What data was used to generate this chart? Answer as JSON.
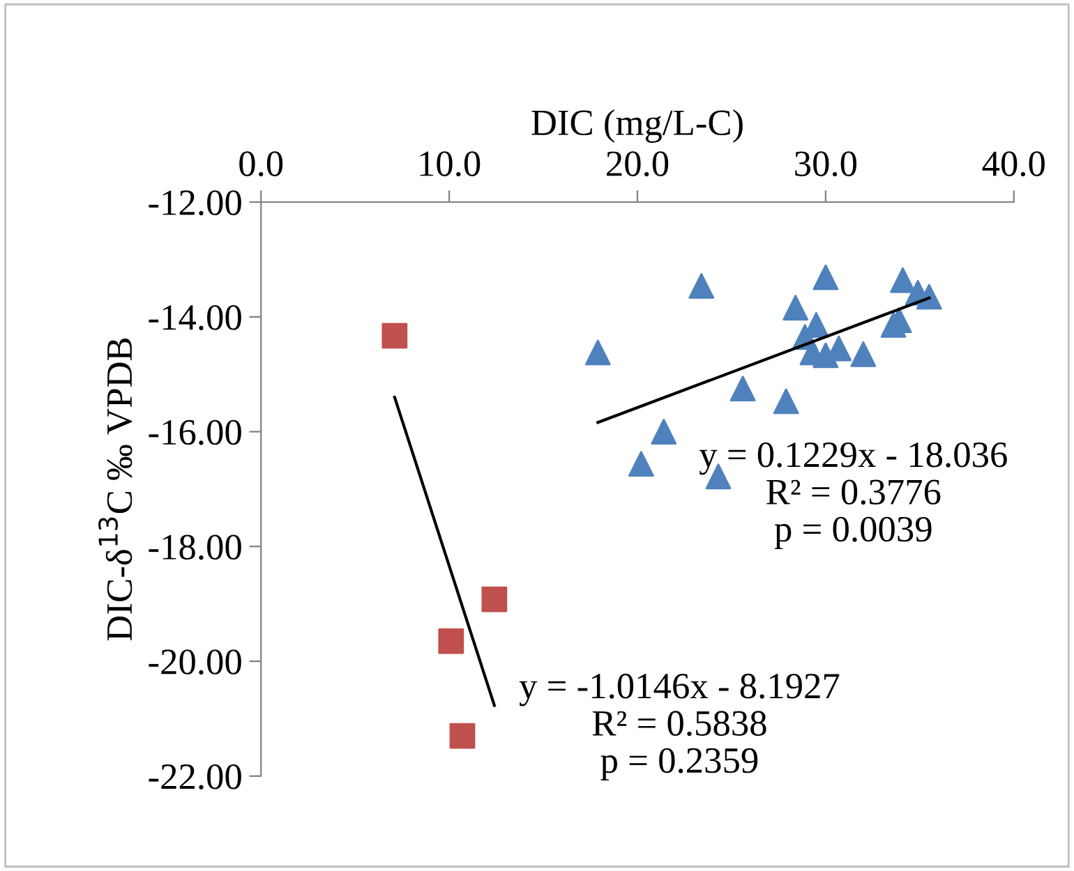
{
  "chart_data": {
    "type": "scatter",
    "xlabel": "DIC (mg/L-C)",
    "ylabel": "DIC-δ$^{13}$C ‰ VPDB",
    "xlim": [
      0,
      40
    ],
    "xticks": [
      {
        "value": 0,
        "label": "0.0"
      },
      {
        "value": 10,
        "label": "10.0"
      },
      {
        "value": 20,
        "label": "20.0"
      },
      {
        "value": 30,
        "label": "30.0"
      },
      {
        "value": 40,
        "label": "40.0"
      }
    ],
    "ylim": [
      -22,
      -12
    ],
    "yticks": [
      {
        "value": -22,
        "label": "-22.00"
      },
      {
        "value": -20,
        "label": "-20.00"
      },
      {
        "value": -18,
        "label": "-18.00"
      },
      {
        "value": -16,
        "label": "-16.00"
      },
      {
        "value": -14,
        "label": "-14.00"
      },
      {
        "value": -12,
        "label": "-12.00"
      }
    ],
    "grid": false,
    "legend": false,
    "series": [
      {
        "marker": "triangle",
        "color": "#4f81bd",
        "x": [
          17.9,
          23.4,
          21.4,
          20.2,
          24.3,
          25.6,
          27.9,
          28.4,
          28.9,
          29.5,
          29.3,
          30.0,
          30.7,
          32.0,
          30.0,
          34.1,
          34.9,
          35.5,
          33.6,
          33.9
        ],
        "values": [
          -14.62,
          -13.46,
          -16.0,
          -16.56,
          -16.78,
          -15.25,
          -15.47,
          -13.84,
          -14.35,
          -14.14,
          -14.62,
          -14.67,
          -14.55,
          -14.65,
          -13.31,
          -13.36,
          -13.58,
          -13.65,
          -14.14,
          -14.06
        ]
      },
      {
        "marker": "square",
        "color": "#c0504d",
        "x": [
          7.1,
          12.4,
          10.1,
          10.7
        ],
        "values": [
          -14.33,
          -18.92,
          -19.65,
          -21.3
        ]
      },
      {
        "type": "line",
        "color": "#000000",
        "x": [
          17.9,
          35.5
        ],
        "values": [
          -15.84,
          -13.67
        ]
      },
      {
        "type": "line",
        "color": "#000000",
        "x": [
          7.1,
          12.4
        ],
        "values": [
          -15.4,
          -20.77
        ]
      }
    ],
    "annotations": [
      "y = 0.1229x - 18.036\nR² = 0.3776\np = 0.0039",
      "y = -1.0146x - 8.1927\nR² = 0.5838\np = 0.2359"
    ]
  }
}
